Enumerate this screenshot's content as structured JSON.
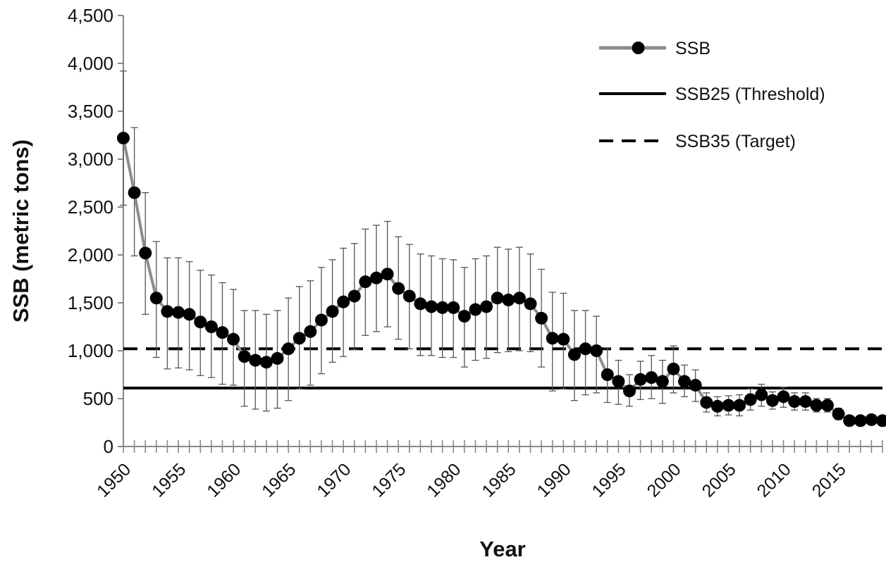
{
  "chart_data": {
    "type": "line",
    "xlabel": "Year",
    "ylabel": "SSB (metric tons)",
    "xlim": [
      1950,
      2019
    ],
    "ylim": [
      0,
      4500
    ],
    "y_ticks": [
      "0",
      "500",
      "1,000",
      "1,500",
      "2,000",
      "2,500",
      "3,000",
      "3,500",
      "4,000",
      "4,500"
    ],
    "y_tick_values": [
      0,
      500,
      1000,
      1500,
      2000,
      2500,
      3000,
      3500,
      4000,
      4500
    ],
    "x_ticks": [
      "1950",
      "1955",
      "1960",
      "1965",
      "1970",
      "1975",
      "1980",
      "1985",
      "1990",
      "1995",
      "2000",
      "2005",
      "2010",
      "2015"
    ],
    "x_tick_values": [
      1950,
      1955,
      1960,
      1965,
      1970,
      1975,
      1980,
      1985,
      1990,
      1995,
      2000,
      2005,
      2010,
      2015
    ],
    "grid": false,
    "legend_position": "top-right",
    "series": [
      {
        "name": "SSB",
        "style": "line-with-markers",
        "line_color": "#8c8c8c",
        "marker_color": "#000000",
        "x": [
          1950,
          1951,
          1952,
          1953,
          1954,
          1955,
          1956,
          1957,
          1958,
          1959,
          1960,
          1961,
          1962,
          1963,
          1964,
          1965,
          1966,
          1967,
          1968,
          1969,
          1970,
          1971,
          1972,
          1973,
          1974,
          1975,
          1976,
          1977,
          1978,
          1979,
          1980,
          1981,
          1982,
          1983,
          1984,
          1985,
          1986,
          1987,
          1988,
          1989,
          1990,
          1991,
          1992,
          1993,
          1994,
          1995,
          1996,
          1997,
          1998,
          1999,
          2000,
          2001,
          2002,
          2003,
          2004,
          2005,
          2006,
          2007,
          2008,
          2009,
          2010,
          2011,
          2012,
          2013,
          2014,
          2015,
          2016,
          2017,
          2018,
          2019
        ],
        "values": [
          3220,
          2650,
          2020,
          1550,
          1410,
          1400,
          1380,
          1300,
          1250,
          1190,
          1120,
          940,
          900,
          880,
          920,
          1020,
          1130,
          1200,
          1320,
          1410,
          1510,
          1570,
          1720,
          1760,
          1800,
          1650,
          1570,
          1490,
          1460,
          1450,
          1450,
          1360,
          1430,
          1460,
          1550,
          1530,
          1550,
          1490,
          1340,
          1130,
          1120,
          960,
          1020,
          1000,
          750,
          680,
          580,
          700,
          720,
          680,
          810,
          680,
          640,
          460,
          420,
          430,
          430,
          490,
          540,
          480,
          520,
          470,
          470,
          430,
          430,
          340,
          270,
          270,
          280,
          270
        ],
        "lower": [
          2520,
          1990,
          1380,
          930,
          810,
          820,
          800,
          740,
          720,
          650,
          640,
          420,
          390,
          370,
          400,
          480,
          600,
          640,
          760,
          880,
          940,
          1010,
          1160,
          1200,
          1250,
          1120,
          1020,
          950,
          950,
          930,
          930,
          830,
          900,
          920,
          980,
          990,
          1000,
          990,
          830,
          580,
          600,
          480,
          540,
          560,
          460,
          440,
          420,
          490,
          500,
          450,
          560,
          520,
          470,
          360,
          320,
          330,
          320,
          380,
          420,
          390,
          410,
          380,
          380,
          360,
          360,
          280,
          240,
          240,
          250,
          240
        ],
        "upper": [
          3920,
          3330,
          2650,
          2140,
          1970,
          1970,
          1930,
          1840,
          1790,
          1710,
          1640,
          1420,
          1420,
          1380,
          1420,
          1550,
          1670,
          1730,
          1870,
          1950,
          2070,
          2120,
          2270,
          2310,
          2350,
          2190,
          2110,
          2010,
          1990,
          1960,
          1950,
          1870,
          1960,
          1990,
          2080,
          2060,
          2080,
          2010,
          1850,
          1610,
          1600,
          1420,
          1420,
          1360,
          1030,
          900,
          750,
          890,
          950,
          900,
          1050,
          850,
          800,
          560,
          520,
          530,
          540,
          600,
          650,
          570,
          620,
          560,
          560,
          500,
          500,
          400,
          300,
          300,
          310,
          300
        ]
      },
      {
        "name": "SSB25 (Threshold)",
        "style": "solid",
        "line_color": "#000000",
        "x": [
          1950,
          2019
        ],
        "values": [
          610,
          610
        ]
      },
      {
        "name": "SSB35 (Target)",
        "style": "dashed",
        "line_color": "#000000",
        "x": [
          1950,
          2019
        ],
        "values": [
          1020,
          1020
        ]
      }
    ]
  }
}
